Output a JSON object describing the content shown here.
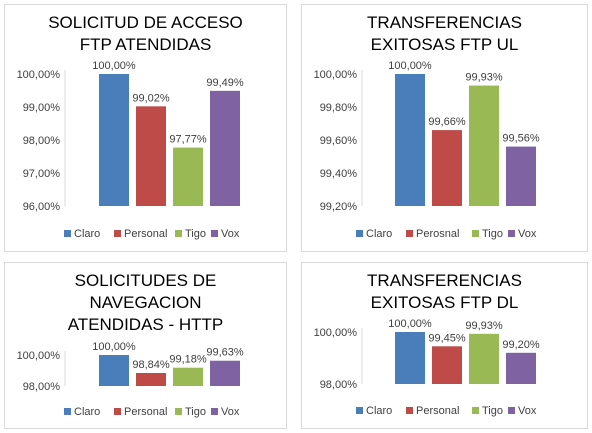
{
  "colors": {
    "Claro": "#4a7ebb",
    "Personal": "#be4b48",
    "Tigo": "#98b954",
    "Vox": "#7e62a1",
    "axis": "#d9d9d9",
    "text": "#404040"
  },
  "chart_data": [
    {
      "type": "bar",
      "title": "SOLICITUD DE ACCESO FTP ATENDIDAS",
      "categories": [
        "Claro",
        "Personal",
        "Tigo",
        "Vox"
      ],
      "values": [
        100.0,
        99.02,
        97.77,
        99.49
      ],
      "data_labels": [
        "100,00%",
        "99,02%",
        "97,77%",
        "99,49%"
      ],
      "legend": [
        "Claro",
        "Personal",
        "Tigo",
        "Vox"
      ],
      "yticks": [
        "100,00%",
        "99,00%",
        "98,00%",
        "97,00%",
        "96,00%"
      ],
      "ylim": [
        96,
        100
      ],
      "legend_position": "bottom",
      "grid": false
    },
    {
      "type": "bar",
      "title": "TRANSFERENCIAS EXITOSAS FTP UL",
      "categories": [
        "Claro",
        "Perosnal",
        "Tigo",
        "Vox"
      ],
      "values": [
        100.0,
        99.66,
        99.93,
        99.56
      ],
      "data_labels": [
        "100,00%",
        "99,66%",
        "99,93%",
        "99,56%"
      ],
      "legend": [
        "Claro",
        "Perosnal",
        "Tigo",
        "Vox"
      ],
      "yticks": [
        "100,00%",
        "99,80%",
        "99,60%",
        "99,40%",
        "99,20%"
      ],
      "ylim": [
        99.2,
        100
      ],
      "legend_position": "bottom",
      "grid": false
    },
    {
      "type": "bar",
      "title": "SOLICITUDES DE NAVEGACION ATENDIDAS - HTTP",
      "categories": [
        "Claro",
        "Personal",
        "Tigo",
        "Vox"
      ],
      "values": [
        100.0,
        98.84,
        99.18,
        99.63
      ],
      "data_labels": [
        "100,00%",
        "98,84%",
        "99,18%",
        "99,63%"
      ],
      "legend": [
        "Claro",
        "Personal",
        "Tigo",
        "Vox"
      ],
      "yticks": [
        "100,00%",
        "98,00%"
      ],
      "ylim": [
        98,
        100
      ],
      "legend_position": "bottom",
      "grid": false
    },
    {
      "type": "bar",
      "title": "TRANSFERENCIAS EXITOSAS FTP DL",
      "categories": [
        "Claro",
        "Personal",
        "Tigo",
        "Vox"
      ],
      "values": [
        100.0,
        99.45,
        99.93,
        99.2
      ],
      "data_labels": [
        "100,00%",
        "99,45%",
        "99,93%",
        "99,20%"
      ],
      "legend": [
        "Claro",
        "Personal",
        "Tigo",
        "Vox"
      ],
      "yticks": [
        "100,00%",
        "98,00%"
      ],
      "ylim": [
        98,
        100
      ],
      "legend_position": "bottom",
      "grid": false
    }
  ]
}
